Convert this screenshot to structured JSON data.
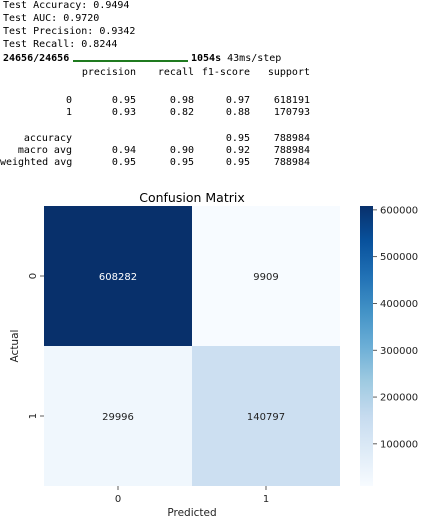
{
  "console": {
    "test_accuracy": "Test Accuracy: 0.9494",
    "test_auc": "Test AUC: 0.9720",
    "test_precision": "Test Precision: 0.9342",
    "test_recall": "Test Recall: 0.8244",
    "progress_steps": "24656/24656",
    "progress_fraction": 1.0,
    "progress_time": "1054s",
    "progress_rate": "43ms/step"
  },
  "report": {
    "headers": [
      "precision",
      "recall",
      "f1-score",
      "support"
    ],
    "rows": [
      {
        "label": "0",
        "precision": "0.95",
        "recall": "0.98",
        "f1": "0.97",
        "support": "618191"
      },
      {
        "label": "1",
        "precision": "0.93",
        "recall": "0.82",
        "f1": "0.88",
        "support": "170793"
      }
    ],
    "summary": [
      {
        "label": "accuracy",
        "precision": "",
        "recall": "",
        "f1": "0.95",
        "support": "788984"
      },
      {
        "label": "macro avg",
        "precision": "0.94",
        "recall": "0.90",
        "f1": "0.92",
        "support": "788984"
      },
      {
        "label": "weighted avg",
        "precision": "0.95",
        "recall": "0.95",
        "f1": "0.95",
        "support": "788984"
      }
    ]
  },
  "chart_data": {
    "type": "heatmap",
    "title": "Confusion Matrix",
    "xlabel": "Predicted",
    "ylabel": "Actual",
    "x_categories": [
      "0",
      "1"
    ],
    "y_categories": [
      "0",
      "1"
    ],
    "values": [
      [
        608282,
        9909
      ],
      [
        29996,
        140797
      ]
    ],
    "value_labels": [
      [
        "608282",
        "9909"
      ],
      [
        "29996",
        "140797"
      ]
    ],
    "colormap": "Blues",
    "colorbar_range": [
      9909,
      608282
    ],
    "colorbar_ticks": [
      "100000",
      "200000",
      "300000",
      "400000",
      "500000",
      "600000"
    ],
    "colorbar_tick_values": [
      100000,
      200000,
      300000,
      400000,
      500000,
      600000
    ]
  }
}
